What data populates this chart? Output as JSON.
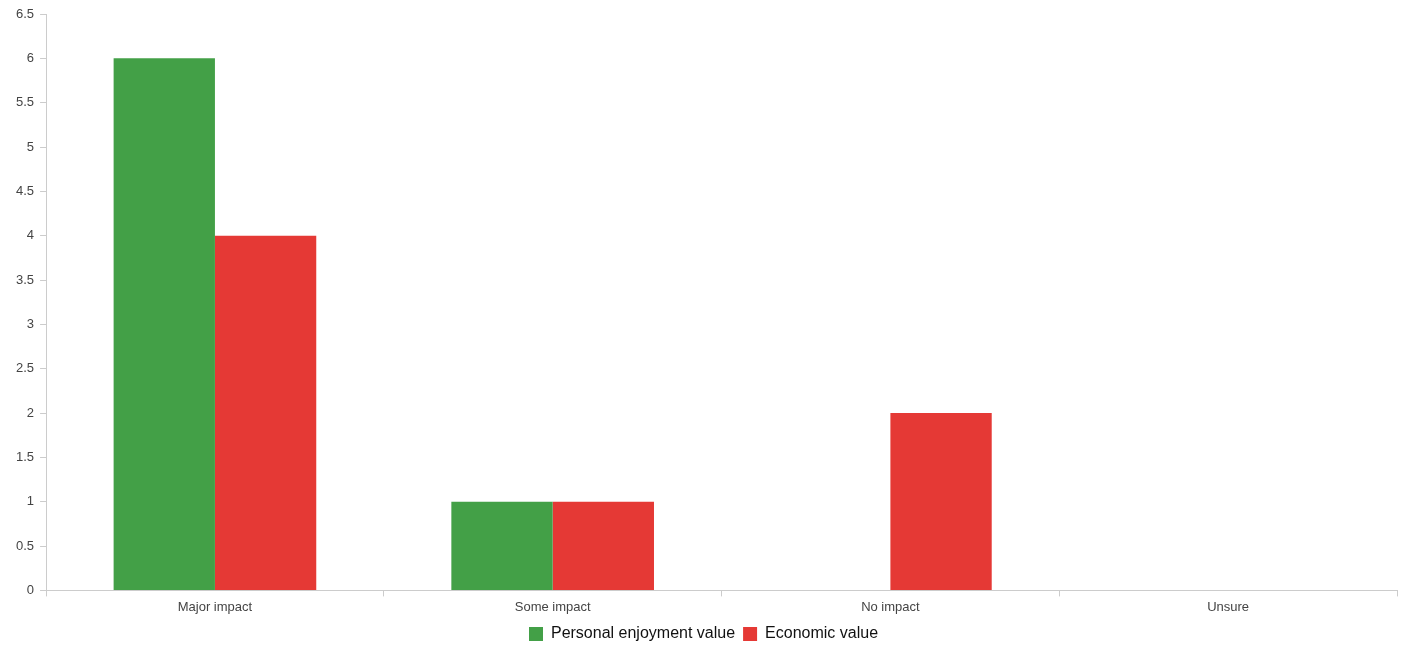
{
  "chart_data": {
    "type": "bar",
    "categories": [
      "Major impact",
      "Some impact",
      "No impact",
      "Unsure"
    ],
    "series": [
      {
        "name": "Personal enjoyment value",
        "color": "#43a047",
        "values": [
          6,
          1,
          0,
          0
        ]
      },
      {
        "name": "Economic value",
        "color": "#e53935",
        "values": [
          4,
          1,
          2,
          0
        ]
      }
    ],
    "ylim": [
      0,
      6.5
    ],
    "yticks": [
      0,
      0.5,
      1,
      1.5,
      2,
      2.5,
      3,
      3.5,
      4,
      4.5,
      5,
      5.5,
      6,
      6.5
    ],
    "grid": false,
    "legend": "bottom"
  }
}
